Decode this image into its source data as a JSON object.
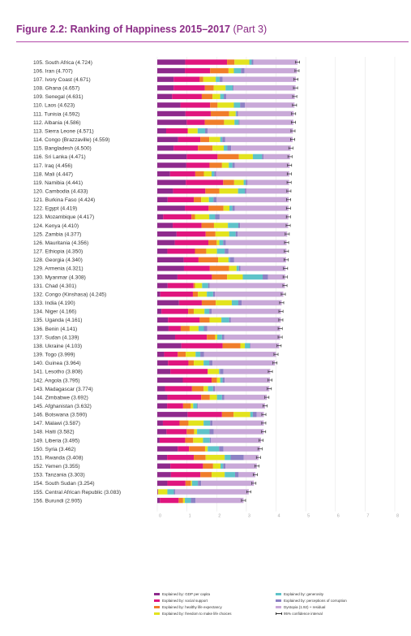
{
  "figure": {
    "title_main": "Figure 2.2: Ranking of Happiness 2015–2017",
    "title_part": " (Part 3)"
  },
  "chart_data": {
    "type": "bar",
    "orientation": "horizontal",
    "stacked": true,
    "xlim": [
      0,
      8
    ],
    "x_ticks": [
      0,
      1,
      2,
      3,
      4,
      5,
      6,
      7,
      8
    ],
    "grid": true,
    "legend_position": "bottom",
    "components": [
      {
        "key": "gdp",
        "name": "Explained by: GDP per capita",
        "color": "#8e2a8c"
      },
      {
        "key": "social",
        "name": "Explained by: social support",
        "color": "#e0157e"
      },
      {
        "key": "health",
        "name": "Explained by: healthy life expectancy",
        "color": "#f07d2a"
      },
      {
        "key": "freedom",
        "name": "Explained by: freedom to make life choices",
        "color": "#e3e31e"
      },
      {
        "key": "generosity",
        "name": "Explained by: generosity",
        "color": "#5fc3c9"
      },
      {
        "key": "corruption",
        "name": "Explained by: perceptions of corruption",
        "color": "#8d82c4"
      },
      {
        "key": "dystopia",
        "name": "Dystopia (1.92) + residual",
        "color": "#c9a9d8"
      },
      {
        "key": "ci",
        "name": "95% confidence interval",
        "color": "#333333"
      }
    ],
    "countries": [
      {
        "rank": 105,
        "name": "South Africa",
        "score": 4.724,
        "parts": [
          0.94,
          1.41,
          0.25,
          0.5,
          0.08,
          0.06
        ]
      },
      {
        "rank": 106,
        "name": "Iran",
        "score": 4.707,
        "parts": [
          0.93,
          0.85,
          0.62,
          0.18,
          0.24,
          0.12
        ]
      },
      {
        "rank": 107,
        "name": "Ivory Coast",
        "score": 4.671,
        "parts": [
          0.55,
          0.88,
          0.12,
          0.42,
          0.13,
          0.1
        ]
      },
      {
        "rank": 108,
        "name": "Ghana",
        "score": 4.657,
        "parts": [
          0.55,
          1.05,
          0.3,
          0.4,
          0.24,
          0.03
        ]
      },
      {
        "rank": 109,
        "name": "Senegal",
        "score": 4.631,
        "parts": [
          0.5,
          1.0,
          0.36,
          0.26,
          0.12,
          0.08
        ]
      },
      {
        "rank": 110,
        "name": "Laos",
        "score": 4.623,
        "parts": [
          0.78,
          1.0,
          0.25,
          0.55,
          0.21,
          0.16
        ]
      },
      {
        "rank": 111,
        "name": "Tunisia",
        "score": 4.592,
        "parts": [
          0.95,
          0.85,
          0.62,
          0.22,
          0.03,
          0.05
        ]
      },
      {
        "rank": 112,
        "name": "Albania",
        "score": 4.586,
        "parts": [
          0.99,
          0.61,
          0.65,
          0.35,
          0.14,
          0.03
        ]
      },
      {
        "rank": 113,
        "name": "Sierra Leone",
        "score": 4.571,
        "parts": [
          0.3,
          0.72,
          0.02,
          0.32,
          0.25,
          0.09
        ]
      },
      {
        "rank": 114,
        "name": "Congo (Brazzaville)",
        "score": 4.559,
        "parts": [
          0.7,
          0.75,
          0.3,
          0.37,
          0.07,
          0.1
        ]
      },
      {
        "rank": 115,
        "name": "Bangladesh",
        "score": 4.5,
        "parts": [
          0.55,
          0.82,
          0.49,
          0.38,
          0.12,
          0.13
        ]
      },
      {
        "rank": 116,
        "name": "Sri Lanka",
        "score": 4.471,
        "parts": [
          0.99,
          1.04,
          0.72,
          0.47,
          0.31,
          0.05
        ]
      },
      {
        "rank": 117,
        "name": "Iraq",
        "score": 4.456,
        "parts": [
          0.98,
          0.78,
          0.42,
          0.23,
          0.12,
          0.08
        ]
      },
      {
        "rank": 118,
        "name": "Mali",
        "score": 4.447,
        "parts": [
          0.43,
          0.85,
          0.29,
          0.26,
          0.09,
          0.06
        ]
      },
      {
        "rank": 119,
        "name": "Namibia",
        "score": 4.441,
        "parts": [
          0.96,
          1.26,
          0.37,
          0.32,
          0.07,
          0.06
        ]
      },
      {
        "rank": 120,
        "name": "Cambodia",
        "score": 4.433,
        "parts": [
          0.53,
          1.09,
          0.47,
          0.63,
          0.23,
          0.05
        ]
      },
      {
        "rank": 121,
        "name": "Burkina Faso",
        "score": 4.424,
        "parts": [
          0.35,
          0.88,
          0.25,
          0.26,
          0.15,
          0.11
        ]
      },
      {
        "rank": 122,
        "name": "Egypt",
        "score": 4.419,
        "parts": [
          0.93,
          0.8,
          0.5,
          0.2,
          0.1,
          0.08
        ]
      },
      {
        "rank": 123,
        "name": "Mozambique",
        "score": 4.417,
        "parts": [
          0.2,
          0.95,
          0.12,
          0.48,
          0.2,
          0.15
        ]
      },
      {
        "rank": 124,
        "name": "Kenya",
        "score": 4.41,
        "parts": [
          0.52,
          0.97,
          0.42,
          0.47,
          0.35,
          0.06
        ]
      },
      {
        "rank": 125,
        "name": "Zambia",
        "score": 4.377,
        "parts": [
          0.65,
          0.98,
          0.33,
          0.46,
          0.22,
          0.07
        ]
      },
      {
        "rank": 126,
        "name": "Mauritania",
        "score": 4.356,
        "parts": [
          0.59,
          1.13,
          0.28,
          0.09,
          0.13,
          0.09
        ]
      },
      {
        "rank": 127,
        "name": "Ethiopia",
        "score": 4.35,
        "parts": [
          0.34,
          0.93,
          0.38,
          0.36,
          0.26,
          0.13
        ]
      },
      {
        "rank": 128,
        "name": "Georgia",
        "score": 4.34,
        "parts": [
          0.89,
          0.5,
          0.66,
          0.35,
          0.05,
          0.14
        ]
      },
      {
        "rank": 129,
        "name": "Armenia",
        "score": 4.321,
        "parts": [
          0.9,
          0.87,
          0.65,
          0.25,
          0.08,
          0.05
        ]
      },
      {
        "rank": 130,
        "name": "Myanmar",
        "score": 4.308,
        "parts": [
          0.68,
          1.16,
          0.51,
          0.53,
          0.67,
          0.18
        ]
      },
      {
        "rank": 131,
        "name": "Chad",
        "score": 4.301,
        "parts": [
          0.35,
          0.87,
          0.05,
          0.24,
          0.2,
          0.05
        ]
      },
      {
        "rank": 132,
        "name": "Congo (Kinshasa)",
        "score": 4.245,
        "parts": [
          0.1,
          1.1,
          0.17,
          0.3,
          0.21,
          0.06
        ]
      },
      {
        "rank": 133,
        "name": "India",
        "score": 4.19,
        "parts": [
          0.73,
          0.77,
          0.47,
          0.54,
          0.22,
          0.11
        ]
      },
      {
        "rank": 134,
        "name": "Niger",
        "score": 4.166,
        "parts": [
          0.14,
          0.9,
          0.19,
          0.36,
          0.16,
          0.08
        ]
      },
      {
        "rank": 135,
        "name": "Uganda",
        "score": 4.161,
        "parts": [
          0.36,
          1.07,
          0.33,
          0.4,
          0.26,
          0.06
        ]
      },
      {
        "rank": 136,
        "name": "Benin",
        "score": 4.141,
        "parts": [
          0.38,
          0.41,
          0.3,
          0.3,
          0.18,
          0.11
        ]
      },
      {
        "rank": 137,
        "name": "Sudan",
        "score": 4.139,
        "parts": [
          0.6,
          1.07,
          0.28,
          0.07,
          0.16,
          0.08
        ]
      },
      {
        "rank": 138,
        "name": "Ukraine",
        "score": 4.103,
        "parts": [
          0.81,
          1.39,
          0.6,
          0.15,
          0.17,
          0.02
        ]
      },
      {
        "rank": 139,
        "name": "Togo",
        "score": 3.999,
        "parts": [
          0.23,
          0.46,
          0.27,
          0.33,
          0.16,
          0.12
        ]
      },
      {
        "rank": 140,
        "name": "Guinea",
        "score": 3.964,
        "parts": [
          0.36,
          0.69,
          0.18,
          0.33,
          0.19,
          0.11
        ]
      },
      {
        "rank": 141,
        "name": "Lesotho",
        "score": 3.808,
        "parts": [
          0.44,
          1.26,
          0.0,
          0.38,
          0.03,
          0.12
        ]
      },
      {
        "rank": 142,
        "name": "Angola",
        "score": 3.795,
        "parts": [
          0.86,
          0.97,
          0.18,
          0.11,
          0.08,
          0.07
        ]
      },
      {
        "rank": 143,
        "name": "Madagascar",
        "score": 3.774,
        "parts": [
          0.26,
          0.91,
          0.39,
          0.15,
          0.17,
          0.06
        ]
      },
      {
        "rank": 144,
        "name": "Zimbabwe",
        "score": 3.692,
        "parts": [
          0.34,
          1.14,
          0.29,
          0.24,
          0.17,
          0.08
        ]
      },
      {
        "rank": 145,
        "name": "Afghanistan",
        "score": 3.632,
        "parts": [
          0.33,
          0.54,
          0.26,
          0.08,
          0.13,
          0.03
        ]
      },
      {
        "rank": 146,
        "name": "Botswana",
        "score": 3.59,
        "parts": [
          1.02,
          1.16,
          0.39,
          0.56,
          0.09,
          0.13
        ]
      },
      {
        "rank": 147,
        "name": "Malawi",
        "score": 3.587,
        "parts": [
          0.19,
          0.56,
          0.3,
          0.51,
          0.22,
          0.08
        ]
      },
      {
        "rank": 148,
        "name": "Haiti",
        "score": 3.582,
        "parts": [
          0.31,
          0.68,
          0.25,
          0.1,
          0.42,
          0.14
        ]
      },
      {
        "rank": 149,
        "name": "Liberia",
        "score": 3.495,
        "parts": [
          0.08,
          0.86,
          0.27,
          0.33,
          0.23,
          0.04
        ]
      },
      {
        "rank": 150,
        "name": "Syria",
        "score": 3.462,
        "parts": [
          0.69,
          0.38,
          0.54,
          0.09,
          0.38,
          0.15
        ]
      },
      {
        "rank": 151,
        "name": "Rwanda",
        "score": 3.408,
        "parts": [
          0.33,
          0.9,
          0.4,
          0.64,
          0.2,
          0.44
        ]
      },
      {
        "rank": 152,
        "name": "Yemen",
        "score": 3.355,
        "parts": [
          0.44,
          1.1,
          0.34,
          0.25,
          0.09,
          0.08
        ]
      },
      {
        "rank": 153,
        "name": "Tanzania",
        "score": 3.303,
        "parts": [
          0.46,
          0.99,
          0.38,
          0.44,
          0.35,
          0.12
        ]
      },
      {
        "rank": 154,
        "name": "South Sudan",
        "score": 3.254,
        "parts": [
          0.34,
          0.61,
          0.18,
          0.04,
          0.2,
          0.11
        ]
      },
      {
        "rank": 155,
        "name": "Central African Republic",
        "score": 3.083,
        "parts": [
          0.02,
          0.0,
          0.01,
          0.31,
          0.22,
          0.04
        ]
      },
      {
        "rank": 156,
        "name": "Burundi",
        "score": 2.905,
        "parts": [
          0.09,
          0.63,
          0.15,
          0.06,
          0.2,
          0.16
        ]
      }
    ]
  }
}
